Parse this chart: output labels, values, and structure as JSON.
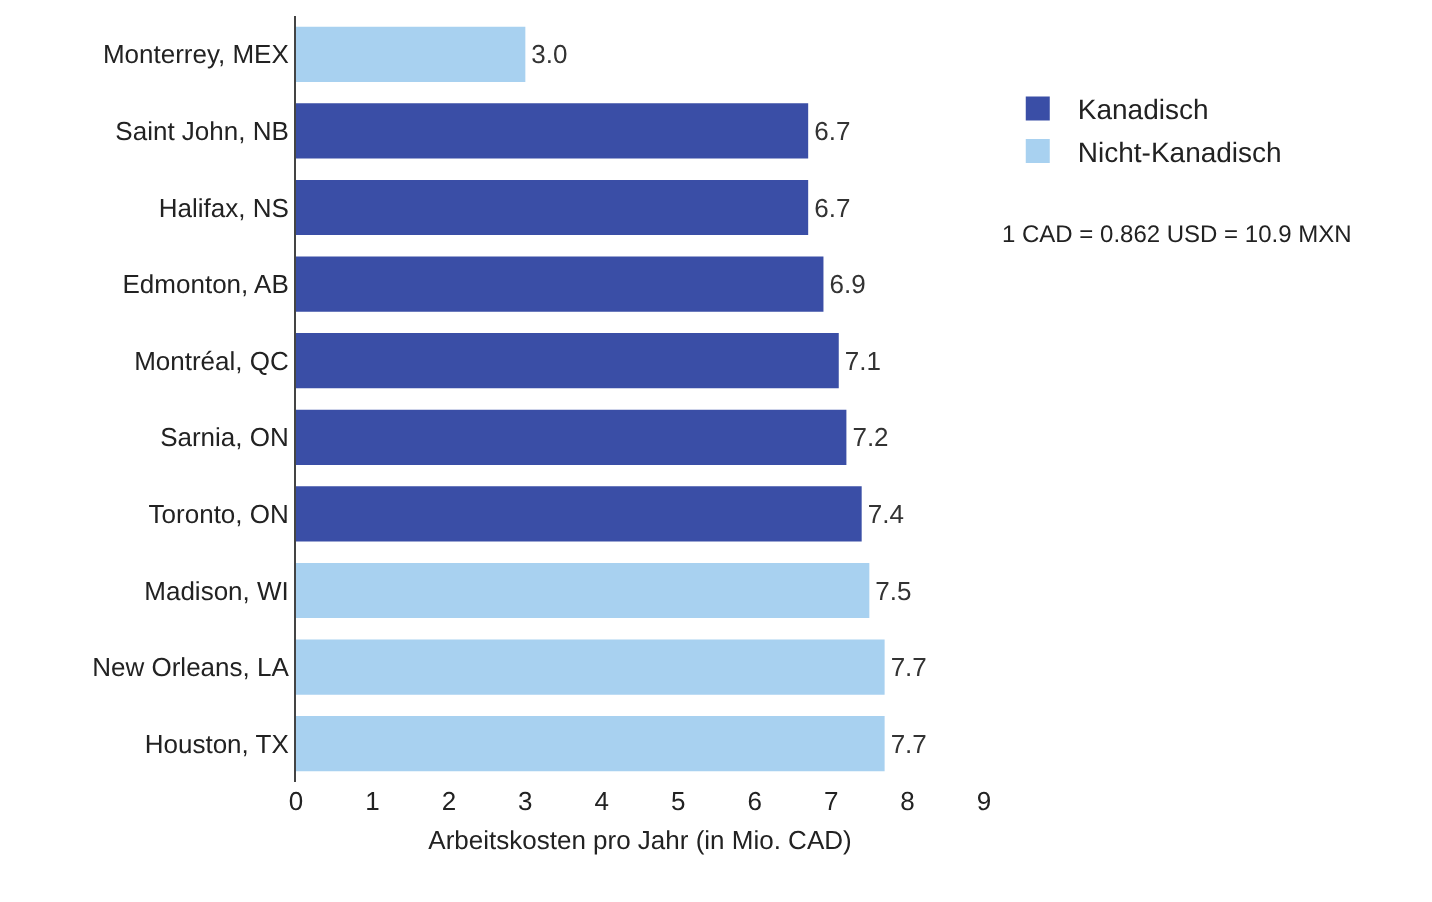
{
  "chart_data": {
    "type": "bar",
    "orientation": "horizontal",
    "xlabel": "Arbeitskosten pro Jahr (in Mio. CAD)",
    "categories": [
      "Monterrey, MEX",
      "Saint John, NB",
      "Halifax, NS",
      "Edmonton, AB",
      "Montréal, QC",
      "Sarnia, ON",
      "Toronto, ON",
      "Madison, WI",
      "New Orleans, LA",
      "Houston, TX"
    ],
    "series": [
      {
        "name": "Kanadisch",
        "color": "#3a4ea6",
        "values": [
          null,
          6.7,
          6.7,
          6.9,
          7.1,
          7.2,
          7.4,
          null,
          null,
          null
        ],
        "value_labels": [
          null,
          "6.7",
          "6.7",
          "6.9",
          "7.1",
          "7.2",
          "7.4",
          null,
          null,
          null
        ]
      },
      {
        "name": "Nicht-Kanadisch",
        "color": "#a8d1f0",
        "values": [
          3.0,
          null,
          null,
          null,
          null,
          null,
          null,
          7.5,
          7.7,
          7.7
        ],
        "value_labels": [
          "3.0",
          null,
          null,
          null,
          null,
          null,
          null,
          "7.5",
          "7.7",
          "7.7"
        ]
      }
    ],
    "xlim": [
      0,
      9
    ],
    "xticks": [
      0,
      1,
      2,
      3,
      4,
      5,
      6,
      7,
      8,
      9
    ],
    "grid": false,
    "legend": "right",
    "annotations": [
      "1 CAD = 0.862 USD = 10.9 MXN"
    ]
  }
}
